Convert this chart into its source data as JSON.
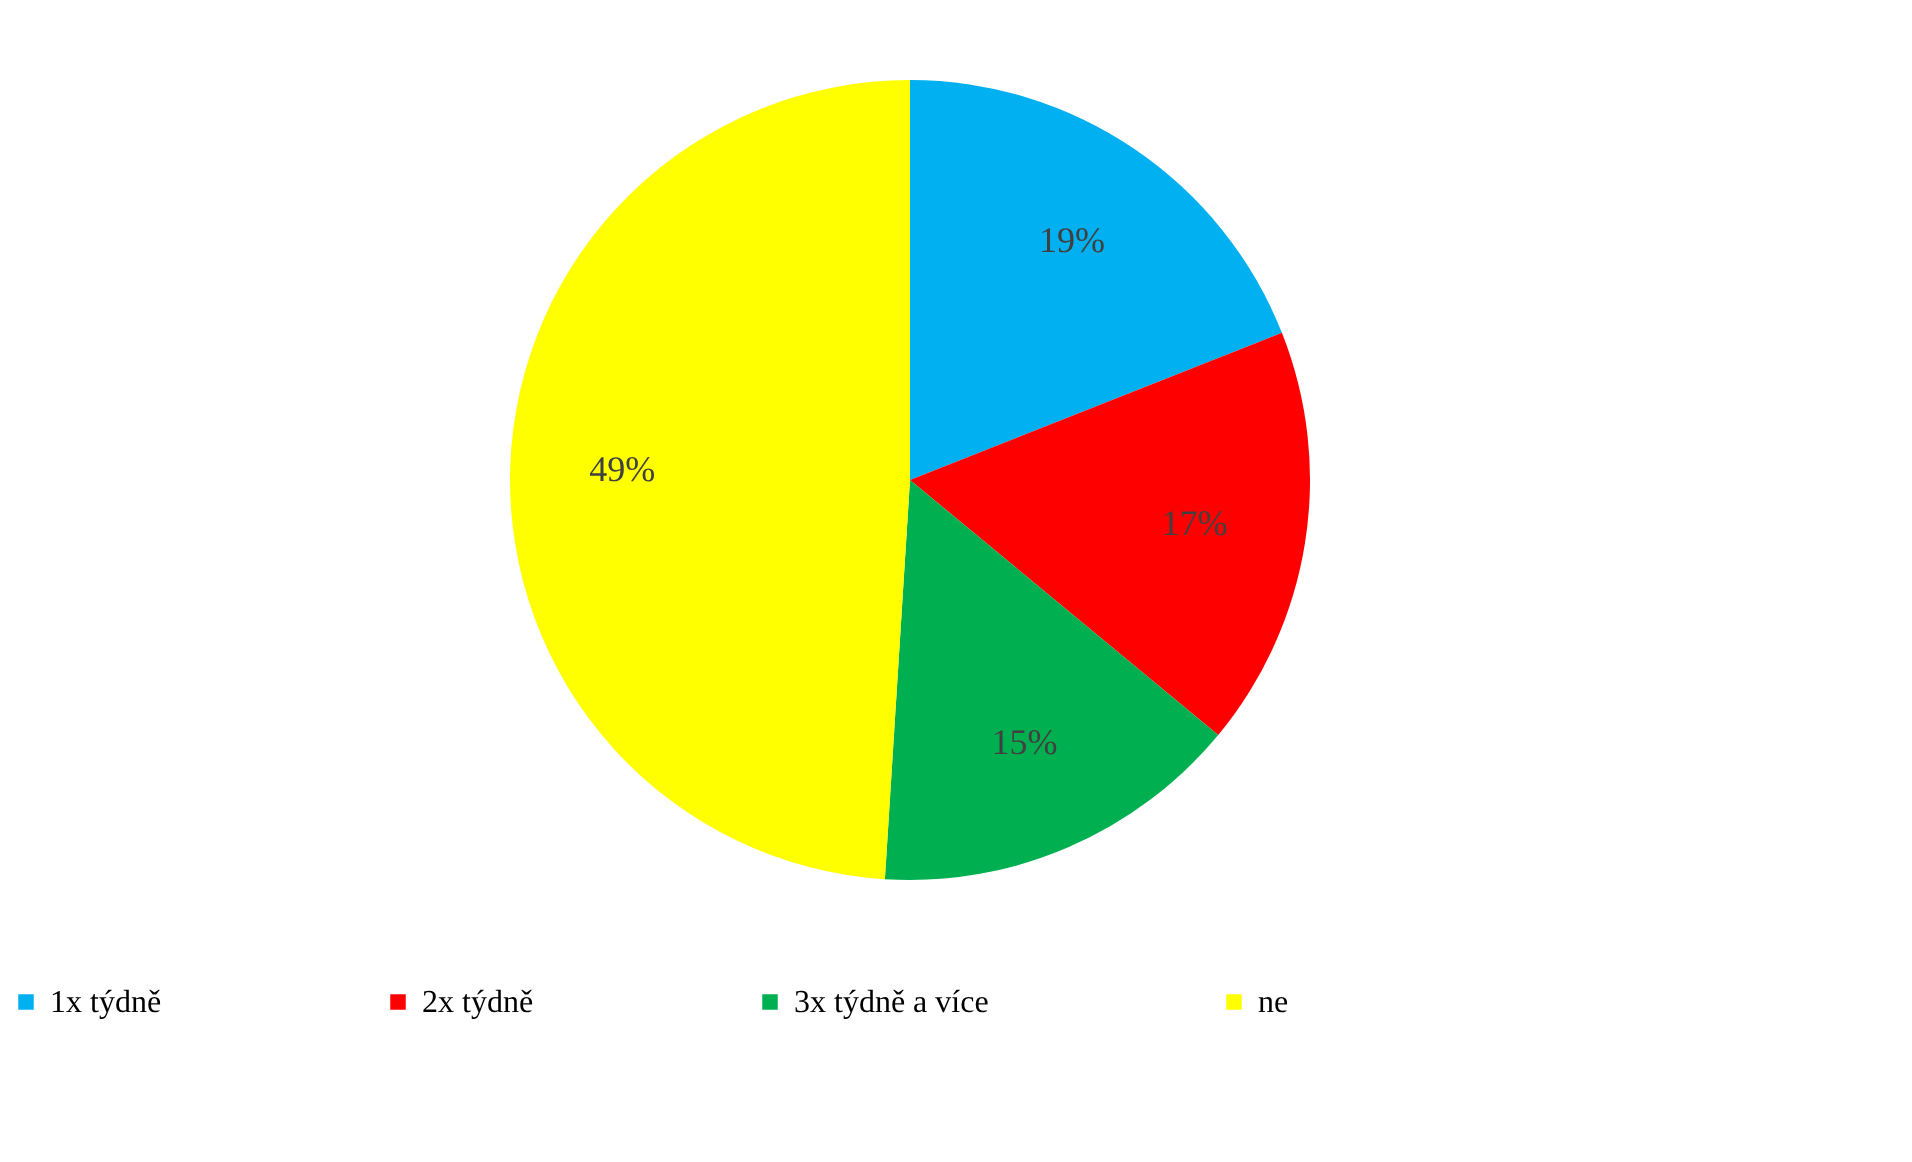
{
  "chart_data": {
    "type": "pie",
    "categories": [
      "1x týdně",
      "2x týdně",
      "3x  týdně a více",
      "ne"
    ],
    "values": [
      19,
      17,
      15,
      49
    ],
    "colors": [
      "#00b0f0",
      "#ff0000",
      "#00b050",
      "#ffff00"
    ],
    "value_labels": [
      "19%",
      "17%",
      "15%",
      "49%"
    ],
    "legend": "bottom"
  }
}
